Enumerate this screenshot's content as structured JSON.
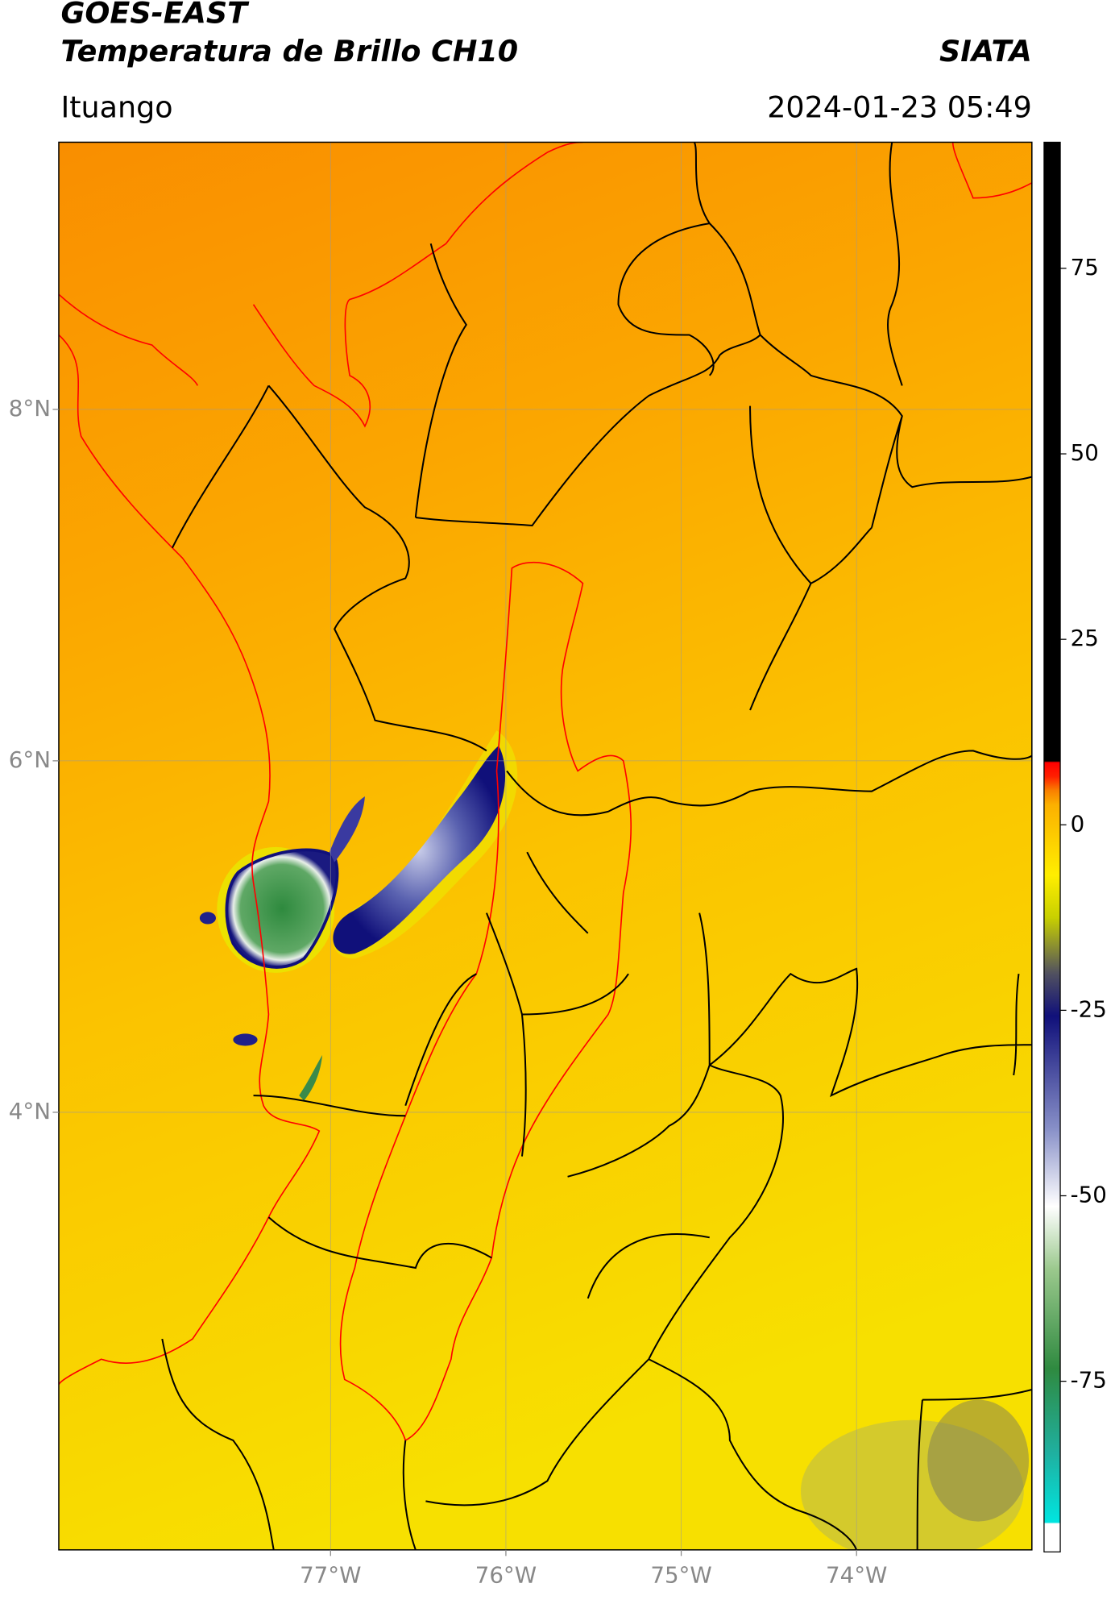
{
  "chart_data": {
    "type": "map",
    "title": "GOES-EAST",
    "subtitle": "Temperatura de Brillo CH10",
    "location": "Ituango",
    "timestamp": "2024-01-23 05:49",
    "source": "SIATA",
    "xlim": [
      -78.55,
      -73.0
    ],
    "xticks": [
      {
        "value": -77,
        "label": "77°W"
      },
      {
        "value": -76,
        "label": "76°W"
      },
      {
        "value": -75,
        "label": "75°W"
      },
      {
        "value": -74,
        "label": "74°W"
      }
    ],
    "ylim": [
      1.51,
      9.52
    ],
    "yticks": [
      {
        "value": 4,
        "label": "4°N"
      },
      {
        "value": 6,
        "label": "6°N"
      },
      {
        "value": 8,
        "label": "8°N"
      }
    ],
    "colorbar": {
      "lim": [
        -98,
        92
      ],
      "ticks": [
        -75,
        -50,
        -25,
        0,
        25,
        50,
        75
      ]
    },
    "grid": true
  }
}
